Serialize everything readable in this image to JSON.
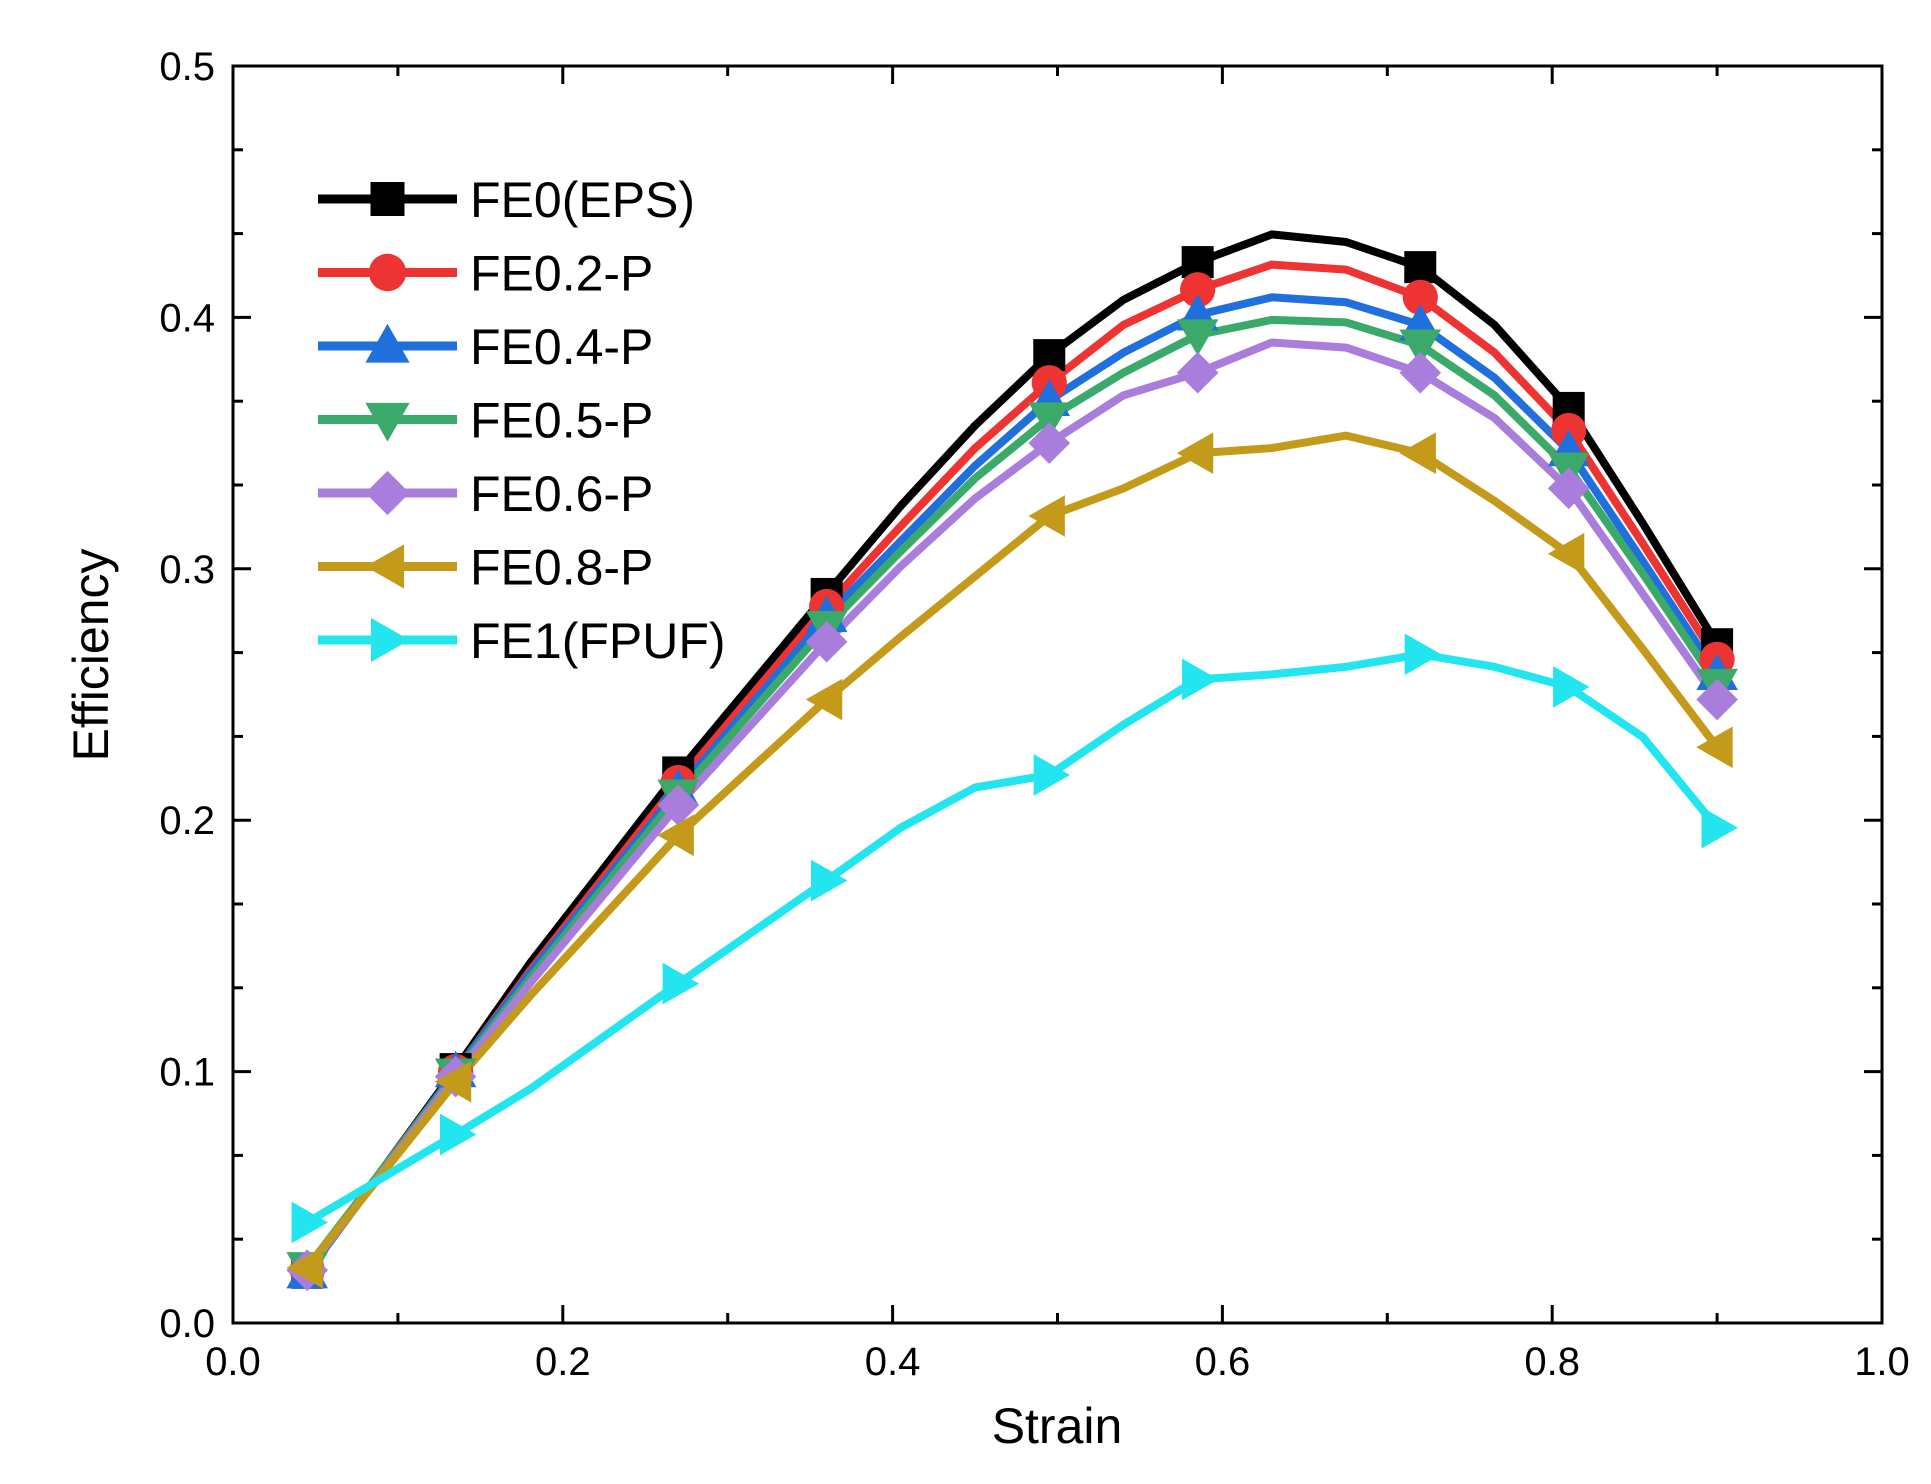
{
  "chart_data": {
    "type": "line",
    "title": "",
    "xlabel": "Strain",
    "ylabel": "Efficiency",
    "xlim": [
      0.0,
      1.0
    ],
    "ylim": [
      0.0,
      0.5
    ],
    "xticks": [
      "0.0",
      "0.2",
      "0.4",
      "0.6",
      "0.8",
      "1.0"
    ],
    "yticks": [
      "0.0",
      "0.1",
      "0.2",
      "0.3",
      "0.4",
      "0.5"
    ],
    "xtick_values": [
      0.0,
      0.2,
      0.4,
      0.6,
      0.8,
      1.0
    ],
    "ytick_values": [
      0.0,
      0.1,
      0.2,
      0.3,
      0.4,
      0.5
    ],
    "grid": false,
    "legend_position": "top-left",
    "series": [
      {
        "name": "FE0(EPS)",
        "color": "#000000",
        "marker": "square",
        "x": [
          0.045,
          0.135,
          0.18,
          0.27,
          0.36,
          0.405,
          0.45,
          0.495,
          0.54,
          0.585,
          0.63,
          0.675,
          0.72,
          0.765,
          0.81,
          0.855,
          0.9
        ],
        "y": [
          0.02,
          0.101,
          0.143,
          0.219,
          0.29,
          0.325,
          0.357,
          0.385,
          0.407,
          0.422,
          0.433,
          0.43,
          0.42,
          0.397,
          0.364,
          0.318,
          0.27
        ],
        "markers_at": [
          0,
          1,
          3,
          4,
          7,
          9,
          12,
          14,
          16
        ]
      },
      {
        "name": "FE0.2-P",
        "color": "#ee3333",
        "marker": "circle",
        "x": [
          0.045,
          0.135,
          0.18,
          0.27,
          0.36,
          0.405,
          0.45,
          0.495,
          0.54,
          0.585,
          0.63,
          0.675,
          0.72,
          0.765,
          0.81,
          0.855,
          0.9
        ],
        "y": [
          0.021,
          0.1,
          0.14,
          0.215,
          0.285,
          0.317,
          0.348,
          0.374,
          0.397,
          0.411,
          0.421,
          0.419,
          0.408,
          0.386,
          0.355,
          0.31,
          0.264
        ],
        "markers_at": [
          0,
          1,
          3,
          4,
          7,
          9,
          12,
          14,
          16
        ]
      },
      {
        "name": "FE0.4-P",
        "color": "#1f6fdd",
        "marker": "triangle-up",
        "x": [
          0.045,
          0.135,
          0.18,
          0.27,
          0.36,
          0.405,
          0.45,
          0.495,
          0.54,
          0.585,
          0.63,
          0.675,
          0.72,
          0.765,
          0.81,
          0.855,
          0.9
        ],
        "y": [
          0.02,
          0.1,
          0.139,
          0.212,
          0.281,
          0.311,
          0.341,
          0.367,
          0.386,
          0.401,
          0.408,
          0.406,
          0.397,
          0.376,
          0.347,
          0.303,
          0.258
        ],
        "markers_at": [
          0,
          1,
          3,
          4,
          7,
          9,
          12,
          14,
          16
        ]
      },
      {
        "name": "FE0.5-P",
        "color": "#3aa96a",
        "marker": "triangle-down",
        "x": [
          0.045,
          0.135,
          0.18,
          0.27,
          0.36,
          0.405,
          0.45,
          0.495,
          0.54,
          0.585,
          0.63,
          0.675,
          0.72,
          0.765,
          0.81,
          0.855,
          0.9
        ],
        "y": [
          0.022,
          0.099,
          0.137,
          0.21,
          0.277,
          0.307,
          0.336,
          0.36,
          0.378,
          0.393,
          0.399,
          0.398,
          0.389,
          0.369,
          0.34,
          0.298,
          0.254
        ],
        "markers_at": [
          0,
          1,
          3,
          4,
          7,
          9,
          12,
          14,
          16
        ]
      },
      {
        "name": "FE0.6-P",
        "color": "#a97ddb",
        "marker": "diamond",
        "x": [
          0.045,
          0.135,
          0.18,
          0.27,
          0.36,
          0.405,
          0.45,
          0.495,
          0.54,
          0.585,
          0.63,
          0.675,
          0.72,
          0.765,
          0.81,
          0.855,
          0.9
        ],
        "y": [
          0.021,
          0.098,
          0.135,
          0.206,
          0.271,
          0.301,
          0.328,
          0.35,
          0.369,
          0.378,
          0.39,
          0.388,
          0.378,
          0.36,
          0.332,
          0.29,
          0.248
        ],
        "markers_at": [
          0,
          1,
          3,
          4,
          7,
          9,
          12,
          14,
          16
        ]
      },
      {
        "name": "FE0.8-P",
        "color": "#c49a1a",
        "marker": "triangle-left",
        "x": [
          0.045,
          0.135,
          0.18,
          0.27,
          0.36,
          0.405,
          0.45,
          0.495,
          0.54,
          0.585,
          0.63,
          0.675,
          0.72,
          0.765,
          0.81,
          0.855,
          0.9
        ],
        "y": [
          0.022,
          0.096,
          0.13,
          0.194,
          0.248,
          0.273,
          0.297,
          0.321,
          0.332,
          0.346,
          0.348,
          0.353,
          0.346,
          0.327,
          0.306,
          0.268,
          0.229
        ],
        "markers_at": [
          0,
          1,
          3,
          4,
          7,
          9,
          12,
          14,
          16
        ]
      },
      {
        "name": "FE1(FPUF)",
        "color": "#22e5ef",
        "marker": "triangle-right",
        "x": [
          0.045,
          0.135,
          0.18,
          0.27,
          0.36,
          0.405,
          0.45,
          0.495,
          0.54,
          0.585,
          0.63,
          0.675,
          0.72,
          0.765,
          0.81,
          0.855,
          0.9
        ],
        "y": [
          0.04,
          0.075,
          0.093,
          0.135,
          0.176,
          0.197,
          0.213,
          0.218,
          0.238,
          0.256,
          0.258,
          0.261,
          0.266,
          0.261,
          0.253,
          0.233,
          0.197
        ],
        "markers_at": [
          0,
          1,
          3,
          4,
          7,
          9,
          12,
          14,
          16
        ]
      }
    ]
  }
}
